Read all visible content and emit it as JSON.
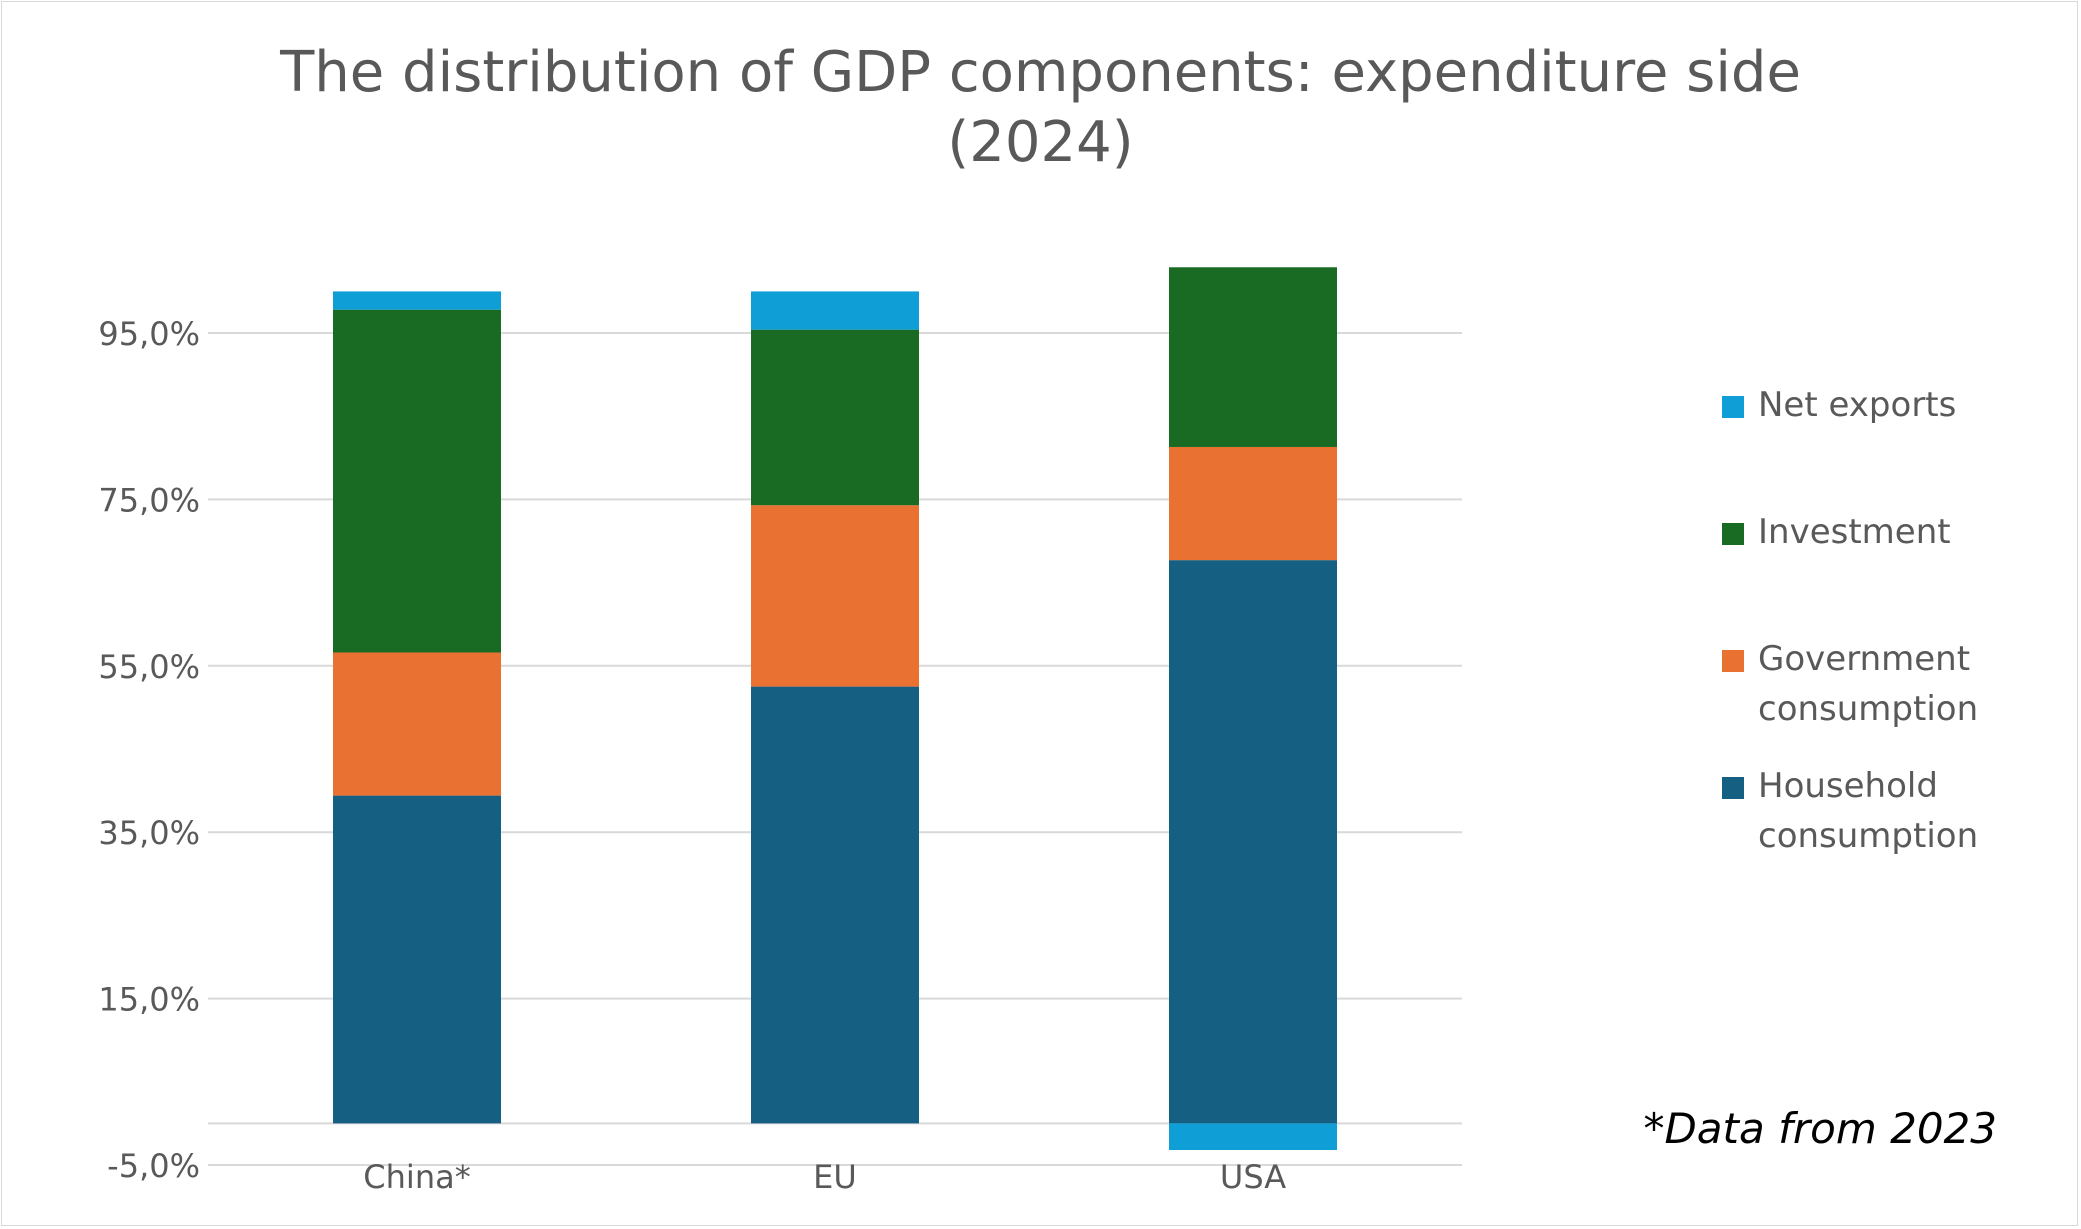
{
  "chart_data": {
    "type": "bar",
    "stacked": true,
    "title": "The distribution of GDP components: expenditure side (2024)",
    "title_lines": [
      "The distribution of GDP components: expenditure side",
      "(2024)"
    ],
    "categories": [
      "China*",
      "EU",
      "USA"
    ],
    "series": [
      {
        "name": "Household consumption",
        "color": "#156082",
        "values": [
          39.4,
          52.5,
          67.7
        ]
      },
      {
        "name": "Government consumption",
        "color": "#E97132",
        "values": [
          17.2,
          21.8,
          13.6
        ]
      },
      {
        "name": "Investment",
        "color": "#196B24",
        "values": [
          41.2,
          21.1,
          21.6
        ]
      },
      {
        "name": "Net exports",
        "color": "#0F9ED5",
        "values": [
          2.2,
          4.6,
          -3.2
        ]
      }
    ],
    "legend_order": [
      "Net exports",
      "Investment",
      "Government consumption",
      "Household consumption"
    ],
    "legend_labels": [
      "Net exports",
      "Investment",
      "Government\nconsumption",
      "Household\nconsumption"
    ],
    "y_ticks": [
      -5,
      15,
      35,
      55,
      75,
      95
    ],
    "y_tick_labels": [
      "-5,0%",
      "15,0%",
      "35,0%",
      "55,0%",
      "75,0%",
      "95,0%"
    ],
    "ylim": [
      -5,
      103
    ],
    "grid": true,
    "legend_position": "right",
    "note": "*Data from 2023"
  }
}
